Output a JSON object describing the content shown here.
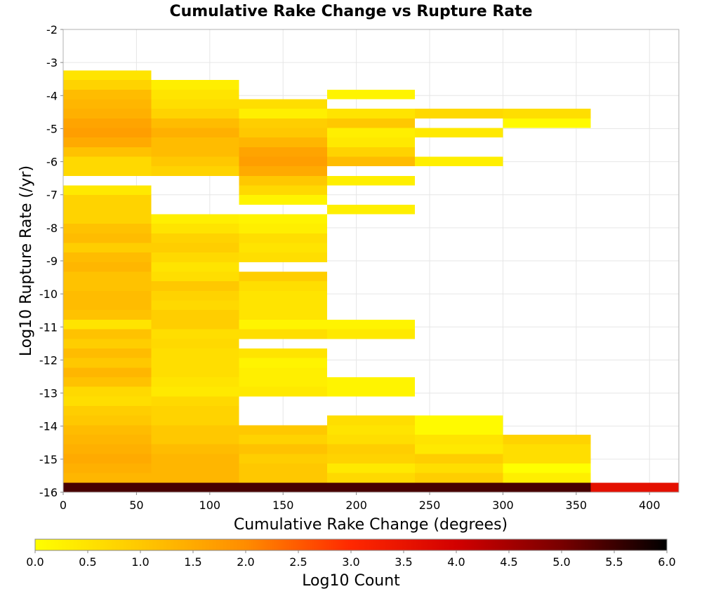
{
  "chart_data": {
    "type": "heatmap",
    "title": "Cumulative Rake Change vs Rupture Rate",
    "xlabel": "Cumulative Rake Change (degrees)",
    "ylabel": "Log10 Rupture Rate (/yr)",
    "xlim": [
      0,
      420
    ],
    "ylim": [
      -16,
      -2
    ],
    "x_ticks": [
      0,
      50,
      100,
      150,
      200,
      250,
      300,
      350,
      400
    ],
    "y_ticks": [
      -2,
      -3,
      -4,
      -5,
      -6,
      -7,
      -8,
      -9,
      -10,
      -11,
      -12,
      -13,
      -14,
      -15,
      -16
    ],
    "grid": true,
    "x_bin_width": 60,
    "y_bin_height": 0.29,
    "colorbar": {
      "title": "Log10 Count",
      "min": 0.0,
      "max": 6.0,
      "ticks": [
        "0.0",
        "0.5",
        "1.0",
        "1.5",
        "2.0",
        "2.5",
        "3.0",
        "3.5",
        "4.0",
        "4.5",
        "5.0",
        "5.5",
        "6.0"
      ],
      "placement": "bottom",
      "stops": [
        "#ffff00",
        "#ffc800",
        "#ff8c00",
        "#ff2800",
        "#d20000",
        "#780000",
        "#000000"
      ]
    },
    "columns": [
      {
        "x": 0,
        "cells": [
          [
            -16,
            5.4
          ],
          [
            -15.71,
            1.3
          ],
          [
            -15.42,
            1.4
          ],
          [
            -15.13,
            1.5
          ],
          [
            -14.84,
            1.4
          ],
          [
            -14.55,
            1.3
          ],
          [
            -14.26,
            1.2
          ],
          [
            -13.97,
            1.0
          ],
          [
            -13.68,
            0.9
          ],
          [
            -13.39,
            0.6
          ],
          [
            -13.1,
            0.7
          ],
          [
            -12.81,
            1.1
          ],
          [
            -12.52,
            1.3
          ],
          [
            -12.23,
            1.0
          ],
          [
            -11.94,
            1.2
          ],
          [
            -11.65,
            0.9
          ],
          [
            -11.36,
            1.1
          ],
          [
            -11.07,
            0.5
          ],
          [
            -10.78,
            1.1
          ],
          [
            -10.49,
            1.2
          ],
          [
            -10.2,
            1.2
          ],
          [
            -9.91,
            1.1
          ],
          [
            -9.62,
            1.1
          ],
          [
            -9.33,
            1.3
          ],
          [
            -9.04,
            1.2
          ],
          [
            -8.75,
            0.9
          ],
          [
            -8.46,
            1.2
          ],
          [
            -8.17,
            1.1
          ],
          [
            -7.88,
            0.8
          ],
          [
            -7.59,
            0.8
          ],
          [
            -7.3,
            0.8
          ],
          [
            -7.01,
            0.4
          ],
          [
            -6.43,
            0.7
          ],
          [
            -6.14,
            0.7
          ],
          [
            -5.85,
            1.1
          ],
          [
            -5.56,
            1.5
          ],
          [
            -5.27,
            1.7
          ],
          [
            -4.98,
            1.6
          ],
          [
            -4.69,
            1.4
          ],
          [
            -4.4,
            1.3
          ],
          [
            -4.11,
            1.2
          ],
          [
            -3.82,
            0.8
          ],
          [
            -3.53,
            0.5
          ]
        ]
      },
      {
        "x": 60,
        "cells": [
          [
            -16,
            5.4
          ],
          [
            -15.71,
            1.3
          ],
          [
            -15.42,
            1.3
          ],
          [
            -15.13,
            1.3
          ],
          [
            -14.84,
            1.2
          ],
          [
            -14.55,
            1.0
          ],
          [
            -14.26,
            1.0
          ],
          [
            -13.97,
            0.8
          ],
          [
            -13.68,
            0.8
          ],
          [
            -13.39,
            0.7
          ],
          [
            -13.1,
            0.4
          ],
          [
            -12.81,
            0.5
          ],
          [
            -12.52,
            0.6
          ],
          [
            -12.23,
            0.6
          ],
          [
            -11.94,
            0.6
          ],
          [
            -11.65,
            0.7
          ],
          [
            -11.36,
            0.6
          ],
          [
            -11.07,
            0.9
          ],
          [
            -10.78,
            0.9
          ],
          [
            -10.49,
            0.7
          ],
          [
            -10.2,
            0.8
          ],
          [
            -9.91,
            1.0
          ],
          [
            -9.62,
            0.6
          ],
          [
            -9.33,
            0.5
          ],
          [
            -9.04,
            0.7
          ],
          [
            -8.75,
            0.9
          ],
          [
            -8.46,
            0.8
          ],
          [
            -8.17,
            0.5
          ],
          [
            -7.88,
            0.3
          ],
          [
            -6.43,
            0.8
          ],
          [
            -6.14,
            1.0
          ],
          [
            -5.85,
            1.2
          ],
          [
            -5.56,
            1.2
          ],
          [
            -5.27,
            1.4
          ],
          [
            -4.98,
            1.2
          ],
          [
            -4.69,
            0.8
          ],
          [
            -4.4,
            0.6
          ],
          [
            -4.11,
            0.5
          ],
          [
            -3.82,
            0.3
          ]
        ]
      },
      {
        "x": 120,
        "cells": [
          [
            -16,
            5.4
          ],
          [
            -15.71,
            1.0
          ],
          [
            -15.42,
            1.0
          ],
          [
            -15.13,
            0.9
          ],
          [
            -14.84,
            1.1
          ],
          [
            -14.55,
            0.8
          ],
          [
            -14.26,
            1.0
          ],
          [
            -13.1,
            0.4
          ],
          [
            -12.81,
            0.3
          ],
          [
            -12.52,
            0.3
          ],
          [
            -12.23,
            0.2
          ],
          [
            -11.94,
            0.5
          ],
          [
            -11.36,
            0.6
          ],
          [
            -11.07,
            0.2
          ],
          [
            -10.78,
            0.5
          ],
          [
            -10.49,
            0.5
          ],
          [
            -10.2,
            0.5
          ],
          [
            -9.91,
            0.6
          ],
          [
            -9.62,
            0.9
          ],
          [
            -9.04,
            0.6
          ],
          [
            -8.75,
            0.5
          ],
          [
            -8.46,
            0.6
          ],
          [
            -8.17,
            0.3
          ],
          [
            -7.88,
            0.2
          ],
          [
            -7.3,
            0.2
          ],
          [
            -7.01,
            0.7
          ],
          [
            -6.72,
            1.0
          ],
          [
            -6.43,
            1.5
          ],
          [
            -6.14,
            1.7
          ],
          [
            -5.85,
            1.6
          ],
          [
            -5.56,
            1.3
          ],
          [
            -5.27,
            1.0
          ],
          [
            -4.98,
            0.9
          ],
          [
            -4.69,
            0.3
          ],
          [
            -4.4,
            0.6
          ]
        ]
      },
      {
        "x": 180,
        "cells": [
          [
            -16,
            5.4
          ],
          [
            -15.71,
            0.7
          ],
          [
            -15.42,
            0.4
          ],
          [
            -15.13,
            0.8
          ],
          [
            -14.84,
            0.9
          ],
          [
            -14.55,
            0.6
          ],
          [
            -14.26,
            0.5
          ],
          [
            -13.97,
            0.6
          ],
          [
            -13.1,
            0.2
          ],
          [
            -12.81,
            0.2
          ],
          [
            -11.36,
            0.4
          ],
          [
            -11.07,
            0.2
          ],
          [
            -7.59,
            0.3
          ],
          [
            -6.72,
            0.3
          ],
          [
            -6.14,
            1.2
          ],
          [
            -5.85,
            0.8
          ],
          [
            -5.56,
            0.4
          ],
          [
            -5.27,
            0.3
          ],
          [
            -4.98,
            1.0
          ],
          [
            -4.69,
            0.5
          ],
          [
            -4.11,
            0.2
          ]
        ]
      },
      {
        "x": 240,
        "cells": [
          [
            -16,
            5.4
          ],
          [
            -15.71,
            0.9
          ],
          [
            -15.42,
            0.6
          ],
          [
            -15.13,
            0.9
          ],
          [
            -14.84,
            0.4
          ],
          [
            -14.55,
            0.5
          ],
          [
            -14.26,
            0.1
          ],
          [
            -13.97,
            0.1
          ],
          [
            -6.14,
            0.3
          ],
          [
            -5.27,
            0.4
          ],
          [
            -4.69,
            0.7
          ]
        ]
      },
      {
        "x": 300,
        "cells": [
          [
            -16,
            5.4
          ],
          [
            -15.71,
            0.3
          ],
          [
            -15.42,
            0.0
          ],
          [
            -15.13,
            0.6
          ],
          [
            -14.84,
            0.6
          ],
          [
            -14.55,
            0.8
          ],
          [
            -4.98,
            0.1
          ],
          [
            -4.69,
            0.6
          ]
        ]
      },
      {
        "x": 360,
        "cells": [
          [
            -16,
            3.6
          ]
        ]
      }
    ]
  }
}
